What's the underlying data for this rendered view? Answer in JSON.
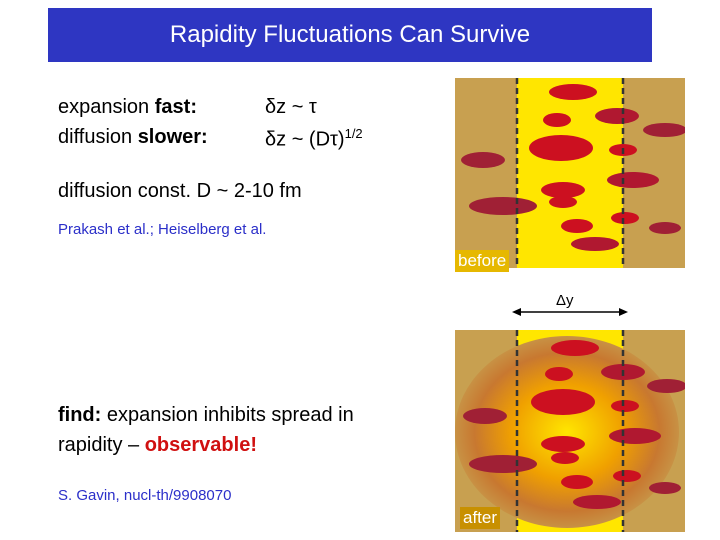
{
  "title": "Rapidity Fluctuations Can Survive",
  "relations": {
    "row1": {
      "prefix": "expansion ",
      "strong": "fast:",
      "formula": "δz ~ τ"
    },
    "row2": {
      "prefix": "diffusion ",
      "strong": "slower:",
      "formula": "δz ~ (Dτ)",
      "exponent": "1/2"
    }
  },
  "diffusion_text": "diffusion const.  D ~ 2-10 fm",
  "ref1": "Prakash et al.; Heiselberg et al.",
  "find": {
    "strong": "find:",
    "line1_rest": " expansion inhibits spread in",
    "line2_prefix": "rapidity – ",
    "highlight": "observable!"
  },
  "ref2": "S. Gavin, nucl-th/9908070",
  "panels": {
    "before_label": "before",
    "after_label": "after",
    "delta_label": "Δy"
  },
  "colors": {
    "title_bg": "#2e36c2",
    "band_yellow": "#ffe600",
    "outer_tan": "#c8a050",
    "blob_red": "#cc1020",
    "ref_blue": "#2b2fc9"
  }
}
